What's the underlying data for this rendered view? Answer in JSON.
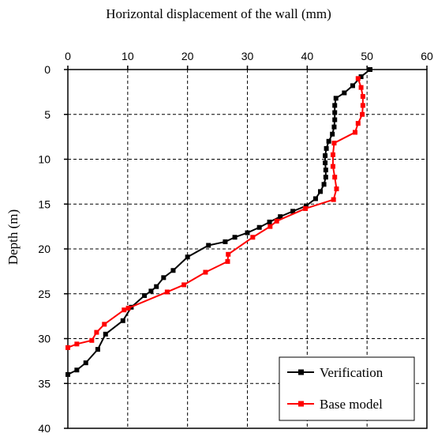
{
  "chart_data": {
    "type": "line",
    "title": "",
    "xlabel": "Horizontal displacement of the wall (mm)",
    "ylabel": "Depth (m)",
    "xlim": [
      0,
      60
    ],
    "ylim": [
      0,
      40
    ],
    "y_inverted": true,
    "x_axis_position": "top",
    "xticks": [
      "0",
      "10",
      "20",
      "30",
      "40",
      "50",
      "60"
    ],
    "yticks": [
      "0",
      "5",
      "10",
      "15",
      "20",
      "25",
      "30",
      "35",
      "40"
    ],
    "grid": true,
    "legend_position": "bottom-right",
    "series": [
      {
        "name": "Verification",
        "color": "#000000",
        "marker": "square",
        "points": [
          [
            50.5,
            0.0
          ],
          [
            49.0,
            0.8
          ],
          [
            47.6,
            1.8
          ],
          [
            46.2,
            2.6
          ],
          [
            44.8,
            3.2
          ],
          [
            44.6,
            4.0
          ],
          [
            44.6,
            4.8
          ],
          [
            44.6,
            5.6
          ],
          [
            44.5,
            6.4
          ],
          [
            44.2,
            7.2
          ],
          [
            43.6,
            8.0
          ],
          [
            43.2,
            8.8
          ],
          [
            43.0,
            9.6
          ],
          [
            43.0,
            10.4
          ],
          [
            43.1,
            11.2
          ],
          [
            43.1,
            12.0
          ],
          [
            42.8,
            12.8
          ],
          [
            42.2,
            13.6
          ],
          [
            41.4,
            14.4
          ],
          [
            39.8,
            15.2
          ],
          [
            37.6,
            15.8
          ],
          [
            35.5,
            16.4
          ],
          [
            33.7,
            17.0
          ],
          [
            32.0,
            17.6
          ],
          [
            30.0,
            18.2
          ],
          [
            27.9,
            18.7
          ],
          [
            26.3,
            19.2
          ],
          [
            23.5,
            19.6
          ],
          [
            20.0,
            20.9
          ],
          [
            17.6,
            22.4
          ],
          [
            16.0,
            23.2
          ],
          [
            14.8,
            24.2
          ],
          [
            13.9,
            24.7
          ],
          [
            12.8,
            25.2
          ],
          [
            10.6,
            26.5
          ],
          [
            9.2,
            28.0
          ],
          [
            6.3,
            29.5
          ],
          [
            5.0,
            31.2
          ],
          [
            3.0,
            32.7
          ],
          [
            1.5,
            33.5
          ],
          [
            0.0,
            34.0
          ]
        ]
      },
      {
        "name": "Base model",
        "color": "#ff0000",
        "marker": "square",
        "points": [
          [
            48.5,
            1.0
          ],
          [
            49.0,
            2.0
          ],
          [
            49.3,
            3.0
          ],
          [
            49.3,
            4.0
          ],
          [
            49.2,
            5.0
          ],
          [
            48.5,
            6.0
          ],
          [
            48.0,
            7.0
          ],
          [
            44.5,
            8.2
          ],
          [
            44.3,
            9.5
          ],
          [
            44.3,
            10.8
          ],
          [
            44.6,
            12.0
          ],
          [
            44.9,
            13.3
          ],
          [
            44.4,
            14.5
          ],
          [
            39.7,
            15.5
          ],
          [
            34.9,
            16.9
          ],
          [
            33.8,
            17.5
          ],
          [
            30.9,
            18.7
          ],
          [
            26.8,
            20.6
          ],
          [
            26.7,
            21.4
          ],
          [
            23.0,
            22.6
          ],
          [
            19.4,
            24.0
          ],
          [
            16.6,
            24.8
          ],
          [
            10.1,
            26.6
          ],
          [
            9.4,
            26.8
          ],
          [
            6.1,
            28.4
          ],
          [
            4.8,
            29.3
          ],
          [
            4.0,
            30.2
          ],
          [
            1.5,
            30.6
          ],
          [
            0.0,
            31.0
          ]
        ]
      }
    ]
  }
}
